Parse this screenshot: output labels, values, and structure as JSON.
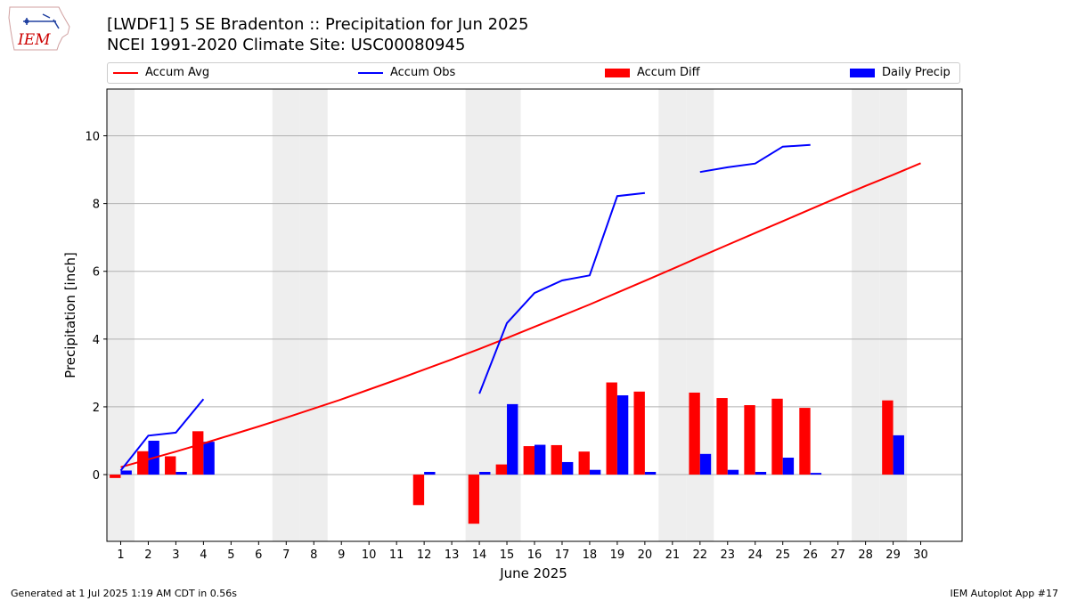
{
  "title_line1": "[LWDF1] 5 SE Bradenton :: Precipitation for Jun 2025",
  "title_line2": "NCEI 1991-2020 Climate Site: USC00080945",
  "logo_text": "IEM",
  "footer_left": "Generated at 1 Jul 2025 1:19 AM CDT in 0.56s",
  "footer_right": "IEM Autoplot App #17",
  "colors": {
    "avg": "#ff0000",
    "obs": "#0000ff",
    "diff": "#ff0000",
    "daily": "#0000ff",
    "weekend": "#eeeeee",
    "grid": "#b0b0b0"
  },
  "chart_data": {
    "type": "bar",
    "title": "[LWDF1] 5 SE Bradenton :: Precipitation for Jun 2025",
    "subtitle": "NCEI 1991-2020 Climate Site: USC00080945",
    "xlabel": "June 2025",
    "ylabel": "Precipitation [inch]",
    "xlim": [
      0.5,
      31.5
    ],
    "ylim": [
      -1.97,
      11.38
    ],
    "yticks": [
      0,
      2,
      4,
      6,
      8,
      10
    ],
    "days": [
      1,
      2,
      3,
      4,
      5,
      6,
      7,
      8,
      9,
      10,
      11,
      12,
      13,
      14,
      15,
      16,
      17,
      18,
      19,
      20,
      21,
      22,
      23,
      24,
      25,
      26,
      27,
      28,
      29,
      30
    ],
    "legend": [
      "Accum Avg",
      "Accum Obs",
      "Accum Diff",
      "Daily Precip"
    ],
    "legend_position": "top",
    "weekend_days": [
      1,
      7,
      8,
      14,
      15,
      21,
      22,
      28,
      29
    ],
    "series": [
      {
        "name": "Accum Avg",
        "kind": "line",
        "values": [
          0.22,
          0.45,
          0.68,
          0.92,
          1.17,
          1.42,
          1.68,
          1.95,
          2.22,
          2.51,
          2.8,
          3.1,
          3.4,
          3.71,
          4.03,
          4.36,
          4.69,
          5.02,
          5.37,
          5.72,
          6.07,
          6.43,
          6.78,
          7.13,
          7.48,
          7.83,
          8.18,
          8.52,
          8.85,
          9.19
        ]
      },
      {
        "name": "Accum Obs",
        "kind": "line",
        "values": [
          0.12,
          1.15,
          1.24,
          2.23,
          null,
          null,
          null,
          null,
          null,
          null,
          null,
          null,
          null,
          2.39,
          4.47,
          5.36,
          5.73,
          5.88,
          8.22,
          8.31,
          null,
          8.93,
          9.07,
          9.18,
          9.68,
          9.73,
          null,
          null,
          null,
          null
        ]
      },
      {
        "name": "Accum Diff",
        "kind": "bar",
        "values": [
          -0.1,
          0.69,
          0.54,
          1.28,
          null,
          null,
          null,
          null,
          null,
          null,
          null,
          -0.9,
          null,
          -1.45,
          0.3,
          0.84,
          0.87,
          0.68,
          2.72,
          2.45,
          null,
          2.42,
          2.26,
          2.05,
          2.24,
          1.97,
          null,
          null,
          2.19,
          null
        ]
      },
      {
        "name": "Daily Precip",
        "kind": "bar",
        "values": [
          0.12,
          1.0,
          0.08,
          0.97,
          null,
          null,
          null,
          null,
          null,
          null,
          null,
          0.08,
          null,
          0.08,
          2.08,
          0.88,
          0.37,
          0.14,
          2.34,
          0.08,
          null,
          0.61,
          0.14,
          0.08,
          0.5,
          0.05,
          null,
          null,
          1.16,
          null
        ]
      }
    ]
  }
}
